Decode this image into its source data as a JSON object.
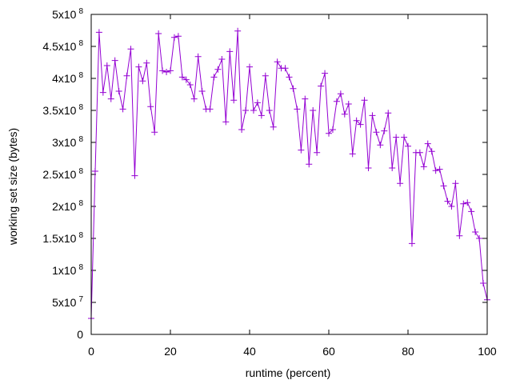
{
  "chart_data": {
    "type": "line",
    "xlabel": "runtime (percent)",
    "ylabel": "working set size (bytes)",
    "xlim": [
      0,
      100
    ],
    "ylim": [
      0,
      500000000
    ],
    "x_ticks": [
      {
        "value": 0,
        "label": "0"
      },
      {
        "value": 20,
        "label": "20"
      },
      {
        "value": 40,
        "label": "40"
      },
      {
        "value": 60,
        "label": "60"
      },
      {
        "value": 80,
        "label": "80"
      },
      {
        "value": 100,
        "label": "100"
      }
    ],
    "y_ticks": [
      {
        "value": 0,
        "mantissa": "0",
        "exponent": ""
      },
      {
        "value": 50000000,
        "mantissa": "5x10",
        "exponent": "7"
      },
      {
        "value": 100000000,
        "mantissa": "1x10",
        "exponent": "8"
      },
      {
        "value": 150000000,
        "mantissa": "1.5x10",
        "exponent": "8"
      },
      {
        "value": 200000000,
        "mantissa": "2x10",
        "exponent": "8"
      },
      {
        "value": 250000000,
        "mantissa": "2.5x10",
        "exponent": "8"
      },
      {
        "value": 300000000,
        "mantissa": "3x10",
        "exponent": "8"
      },
      {
        "value": 350000000,
        "mantissa": "3.5x10",
        "exponent": "8"
      },
      {
        "value": 400000000,
        "mantissa": "4x10",
        "exponent": "8"
      },
      {
        "value": 450000000,
        "mantissa": "4.5x10",
        "exponent": "8"
      },
      {
        "value": 500000000,
        "mantissa": "5x10",
        "exponent": "8"
      }
    ],
    "grid": false,
    "legend": "none",
    "marker": "plus",
    "series_color": "#9400d3",
    "series": [
      {
        "x": [
          0,
          1,
          2,
          3,
          4,
          5,
          6,
          7,
          8,
          9,
          10,
          11,
          12,
          13,
          14,
          15,
          16,
          17,
          18,
          19,
          20,
          21,
          22,
          23,
          24,
          25,
          26,
          27,
          28,
          29,
          30,
          31,
          32,
          33,
          34,
          35,
          36,
          37,
          38,
          39,
          40,
          41,
          42,
          43,
          44,
          45,
          46,
          47,
          48,
          49,
          50,
          51,
          52,
          53,
          54,
          55,
          56,
          57,
          58,
          59,
          60,
          61,
          62,
          63,
          64,
          65,
          66,
          67,
          68,
          69,
          70,
          71,
          72,
          73,
          74,
          75,
          76,
          77,
          78,
          79,
          80,
          81,
          82,
          83,
          84,
          85,
          86,
          87,
          88,
          89,
          90,
          91,
          92,
          93,
          94,
          95,
          96,
          97,
          98,
          99,
          100
        ],
        "y": [
          25000000,
          255000000,
          472000000,
          378000000,
          420000000,
          368000000,
          428000000,
          380000000,
          352000000,
          404000000,
          446000000,
          248000000,
          418000000,
          396000000,
          424000000,
          356000000,
          316000000,
          470000000,
          412000000,
          410000000,
          412000000,
          464000000,
          466000000,
          402000000,
          398000000,
          390000000,
          368000000,
          434000000,
          380000000,
          352000000,
          352000000,
          402000000,
          414000000,
          430000000,
          332000000,
          442000000,
          366000000,
          474000000,
          320000000,
          350000000,
          418000000,
          350000000,
          362000000,
          342000000,
          404000000,
          350000000,
          324000000,
          426000000,
          416000000,
          416000000,
          402000000,
          384000000,
          352000000,
          288000000,
          368000000,
          266000000,
          350000000,
          284000000,
          388000000,
          408000000,
          314000000,
          320000000,
          364000000,
          376000000,
          344000000,
          360000000,
          282000000,
          334000000,
          328000000,
          366000000,
          260000000,
          342000000,
          316000000,
          296000000,
          318000000,
          346000000,
          260000000,
          308000000,
          236000000,
          308000000,
          294000000,
          142000000,
          284000000,
          284000000,
          262000000,
          298000000,
          286000000,
          256000000,
          258000000,
          232000000,
          208000000,
          200000000,
          236000000,
          154000000,
          204000000,
          206000000,
          192000000,
          160000000,
          150000000,
          80000000,
          54000000
        ]
      }
    ]
  }
}
